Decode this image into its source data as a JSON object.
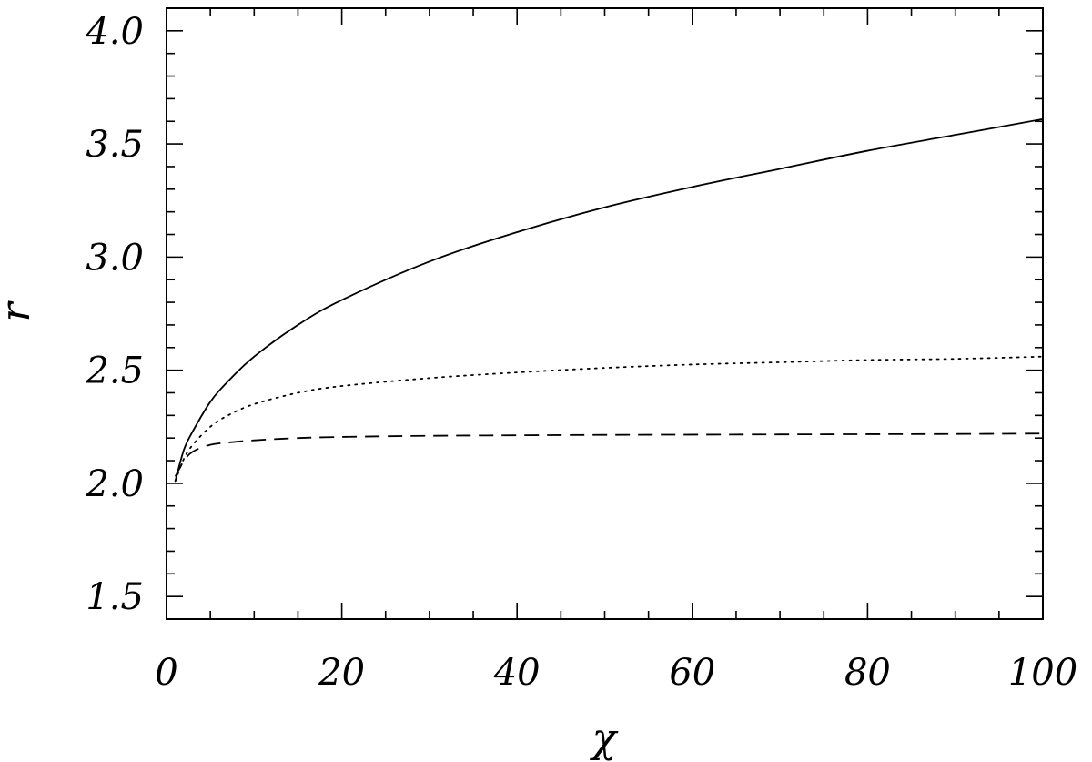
{
  "chart_data": {
    "type": "line",
    "title": "",
    "xlabel": "χ",
    "ylabel": "r",
    "xlim": [
      0,
      100
    ],
    "ylim": [
      1.4,
      4.1
    ],
    "xticks": [
      0,
      20,
      40,
      60,
      80,
      100
    ],
    "xtick_labels": [
      "0",
      "20",
      "40",
      "60",
      "80",
      "100"
    ],
    "yticks": [
      1.5,
      2.0,
      2.5,
      3.0,
      3.5,
      4.0
    ],
    "ytick_labels": [
      "1.5",
      "2.0",
      "2.5",
      "3.0",
      "3.5",
      "4.0"
    ],
    "x_minor_step": 5,
    "y_minor_step": 0.1,
    "grid": false,
    "series": [
      {
        "style": "solid",
        "x": [
          1,
          2,
          3,
          5,
          7,
          10,
          15,
          20,
          30,
          40,
          50,
          60,
          70,
          80,
          90,
          100
        ],
        "y": [
          2.01,
          2.15,
          2.23,
          2.36,
          2.45,
          2.56,
          2.7,
          2.81,
          2.98,
          3.11,
          3.22,
          3.31,
          3.39,
          3.47,
          3.54,
          3.61
        ]
      },
      {
        "style": "dotted",
        "x": [
          1,
          2,
          3,
          5,
          7,
          10,
          15,
          20,
          30,
          40,
          50,
          60,
          70,
          80,
          90,
          100
        ],
        "y": [
          2.01,
          2.11,
          2.17,
          2.25,
          2.3,
          2.35,
          2.4,
          2.43,
          2.465,
          2.49,
          2.51,
          2.525,
          2.535,
          2.545,
          2.55,
          2.56
        ]
      },
      {
        "style": "dashed",
        "x": [
          1,
          2,
          3,
          5,
          7,
          10,
          15,
          20,
          30,
          40,
          50,
          60,
          70,
          80,
          90,
          100
        ],
        "y": [
          2.03,
          2.1,
          2.14,
          2.17,
          2.18,
          2.19,
          2.2,
          2.205,
          2.21,
          2.212,
          2.214,
          2.215,
          2.216,
          2.217,
          2.218,
          2.22
        ]
      }
    ]
  }
}
